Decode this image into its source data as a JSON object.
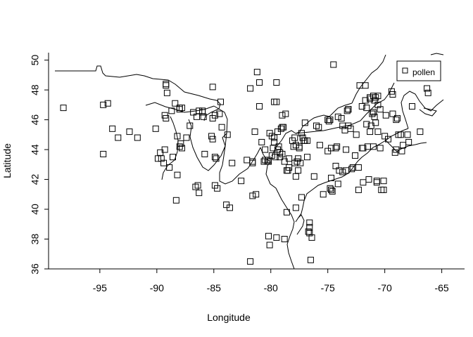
{
  "chart_data": {
    "type": "scatter",
    "xlabel": "Longitude",
    "ylabel": "Latitude",
    "xlim": [
      -99.5,
      -63
    ],
    "ylim": [
      36,
      50.5
    ],
    "x_ticks": [
      -95,
      -90,
      -85,
      -80,
      -75,
      -70,
      -65
    ],
    "x_tick_labels": [
      "-95",
      "-90",
      "-85",
      "-80",
      "-75",
      "-70",
      "-65"
    ],
    "y_ticks": [
      36,
      38,
      40,
      42,
      44,
      46,
      48,
      50
    ],
    "y_tick_labels": [
      "36",
      "38",
      "40",
      "42",
      "44",
      "46",
      "48",
      "50"
    ],
    "grid": false,
    "legend_position": "top-right",
    "series": [
      {
        "name": "pollen",
        "marker": "open-square",
        "color": "#000000",
        "points": [
          [
            -98.2,
            46.8
          ],
          [
            -94.7,
            47.0
          ],
          [
            -94.7,
            43.7
          ],
          [
            -94.3,
            47.1
          ],
          [
            -93.9,
            45.4
          ],
          [
            -93.4,
            44.8
          ],
          [
            -92.4,
            45.2
          ],
          [
            -91.7,
            44.8
          ],
          [
            -90.1,
            45.4
          ],
          [
            -89.9,
            43.4
          ],
          [
            -89.7,
            43.8
          ],
          [
            -89.6,
            43.4
          ],
          [
            -89.4,
            43.1
          ],
          [
            -89.3,
            44.0
          ],
          [
            -89.3,
            46.3
          ],
          [
            -89.2,
            46.1
          ],
          [
            -89.2,
            48.4
          ],
          [
            -89.2,
            48.3
          ],
          [
            -89.1,
            47.8
          ],
          [
            -88.9,
            42.8
          ],
          [
            -88.7,
            46.6
          ],
          [
            -88.6,
            43.5
          ],
          [
            -88.4,
            47.1
          ],
          [
            -88.3,
            40.6
          ],
          [
            -88.2,
            42.3
          ],
          [
            -88.2,
            44.9
          ],
          [
            -88.0,
            46.7
          ],
          [
            -88.0,
            46.8
          ],
          [
            -88.0,
            44.2
          ],
          [
            -87.9,
            44.4
          ],
          [
            -87.8,
            46.8
          ],
          [
            -87.8,
            44.1
          ],
          [
            -87.4,
            44.8
          ],
          [
            -87.1,
            45.6
          ],
          [
            -86.8,
            46.5
          ],
          [
            -86.6,
            41.5
          ],
          [
            -86.5,
            46.2
          ],
          [
            -86.4,
            41.6
          ],
          [
            -86.3,
            46.6
          ],
          [
            -86.3,
            41.1
          ],
          [
            -86.0,
            46.6
          ],
          [
            -86.0,
            46.5
          ],
          [
            -85.9,
            46.2
          ],
          [
            -85.8,
            43.7
          ],
          [
            -85.2,
            44.9
          ],
          [
            -85.1,
            48.2
          ],
          [
            -85.1,
            44.7
          ],
          [
            -85.1,
            46.1
          ],
          [
            -84.9,
            46.3
          ],
          [
            -84.9,
            43.5
          ],
          [
            -84.9,
            41.6
          ],
          [
            -84.8,
            43.4
          ],
          [
            -84.7,
            41.4
          ],
          [
            -84.5,
            46.4
          ],
          [
            -84.4,
            47.2
          ],
          [
            -84.3,
            45.5
          ],
          [
            -83.9,
            40.3
          ],
          [
            -83.6,
            40.1
          ],
          [
            -83.8,
            45.0
          ],
          [
            -83.4,
            43.1
          ],
          [
            -82.6,
            41.9
          ],
          [
            -82.1,
            43.3
          ],
          [
            -81.8,
            48.1
          ],
          [
            -81.8,
            36.5
          ],
          [
            -81.6,
            43.2
          ],
          [
            -81.6,
            43.1
          ],
          [
            -81.6,
            40.9
          ],
          [
            -81.4,
            45.2
          ],
          [
            -81.3,
            41.0
          ],
          [
            -81.2,
            49.2
          ],
          [
            -81.0,
            48.5
          ],
          [
            -81.0,
            46.9
          ],
          [
            -80.8,
            44.5
          ],
          [
            -80.6,
            43.2
          ],
          [
            -80.5,
            43.3
          ],
          [
            -80.5,
            44.0
          ],
          [
            -80.3,
            43.2
          ],
          [
            -80.2,
            43.2
          ],
          [
            -80.2,
            43.3
          ],
          [
            -80.2,
            38.2
          ],
          [
            -80.1,
            37.6
          ],
          [
            -80.1,
            45.1
          ],
          [
            -79.9,
            44.9
          ],
          [
            -79.9,
            43.6
          ],
          [
            -79.8,
            44.1
          ],
          [
            -79.7,
            44.5
          ],
          [
            -79.7,
            44.8
          ],
          [
            -79.7,
            47.2
          ],
          [
            -79.6,
            43.5
          ],
          [
            -79.5,
            47.2
          ],
          [
            -79.5,
            48.5
          ],
          [
            -79.5,
            38.1
          ],
          [
            -79.4,
            44.0
          ],
          [
            -79.4,
            45.2
          ],
          [
            -79.3,
            44.2
          ],
          [
            -79.2,
            43.8
          ],
          [
            -79.2,
            43.5
          ],
          [
            -79.1,
            45.4
          ],
          [
            -79.0,
            45.5
          ],
          [
            -79.0,
            43.7
          ],
          [
            -79.0,
            46.3
          ],
          [
            -78.9,
            45.5
          ],
          [
            -78.8,
            43.2
          ],
          [
            -78.8,
            38.0
          ],
          [
            -78.7,
            46.4
          ],
          [
            -78.6,
            42.6
          ],
          [
            -78.6,
            39.8
          ],
          [
            -78.5,
            42.6
          ],
          [
            -78.4,
            42.8
          ],
          [
            -78.4,
            43.4
          ],
          [
            -78.1,
            44.6
          ],
          [
            -78.0,
            44.2
          ],
          [
            -77.9,
            43.1
          ],
          [
            -77.9,
            44.8
          ],
          [
            -77.8,
            42.2
          ],
          [
            -77.8,
            44.3
          ],
          [
            -77.8,
            40.1
          ],
          [
            -77.7,
            43.2
          ],
          [
            -77.6,
            42.6
          ],
          [
            -77.6,
            43.4
          ],
          [
            -77.5,
            44.2
          ],
          [
            -77.5,
            44.1
          ],
          [
            -77.4,
            43.1
          ],
          [
            -77.3,
            45.1
          ],
          [
            -77.3,
            40.8
          ],
          [
            -77.2,
            44.8
          ],
          [
            -77.1,
            44.6
          ],
          [
            -77.0,
            45.8
          ],
          [
            -77.0,
            44.6
          ],
          [
            -76.8,
            44.6
          ],
          [
            -76.8,
            43.5
          ],
          [
            -76.7,
            38.5
          ],
          [
            -76.6,
            38.8
          ],
          [
            -76.6,
            39.1
          ],
          [
            -76.6,
            38.4
          ],
          [
            -76.5,
            36.6
          ],
          [
            -76.4,
            38.1
          ],
          [
            -76.2,
            42.2
          ],
          [
            -76.0,
            45.6
          ],
          [
            -75.8,
            45.5
          ],
          [
            -75.7,
            44.3
          ],
          [
            -75.4,
            41.0
          ],
          [
            -75.0,
            46.0
          ],
          [
            -75.0,
            43.9
          ],
          [
            -74.9,
            45.9
          ],
          [
            -74.8,
            46.0
          ],
          [
            -74.8,
            41.4
          ],
          [
            -74.7,
            41.3
          ],
          [
            -74.7,
            42.1
          ],
          [
            -74.7,
            44.1
          ],
          [
            -74.6,
            41.2
          ],
          [
            -74.5,
            49.7
          ],
          [
            -74.3,
            42.9
          ],
          [
            -74.3,
            44.1
          ],
          [
            -74.2,
            44.2
          ],
          [
            -74.1,
            46.2
          ],
          [
            -74.1,
            41.7
          ],
          [
            -74.0,
            42.6
          ],
          [
            -73.8,
            46.1
          ],
          [
            -73.7,
            45.6
          ],
          [
            -73.7,
            42.5
          ],
          [
            -73.5,
            45.3
          ],
          [
            -73.4,
            42.6
          ],
          [
            -73.4,
            44.0
          ],
          [
            -73.3,
            46.6
          ],
          [
            -73.2,
            46.7
          ],
          [
            -73.2,
            46.7
          ],
          [
            -73.2,
            45.6
          ],
          [
            -73.0,
            45.4
          ],
          [
            -72.9,
            42.7
          ],
          [
            -72.8,
            42.8
          ],
          [
            -72.6,
            43.6
          ],
          [
            -72.5,
            45.0
          ],
          [
            -72.3,
            42.8
          ],
          [
            -72.3,
            41.3
          ],
          [
            -72.2,
            48.3
          ],
          [
            -72.0,
            44.1
          ],
          [
            -72.0,
            46.9
          ],
          [
            -71.9,
            41.8
          ],
          [
            -71.9,
            44.1
          ],
          [
            -71.7,
            48.3
          ],
          [
            -71.7,
            47.3
          ],
          [
            -71.6,
            46.8
          ],
          [
            -71.6,
            45.7
          ],
          [
            -71.5,
            44.2
          ],
          [
            -71.4,
            42.0
          ],
          [
            -71.3,
            47.4
          ],
          [
            -71.3,
            47.5
          ],
          [
            -71.3,
            45.2
          ],
          [
            -71.2,
            45.6
          ],
          [
            -71.1,
            46.4
          ],
          [
            -71.0,
            47.6
          ],
          [
            -71.0,
            46.5
          ],
          [
            -71.0,
            44.2
          ],
          [
            -70.9,
            47.3
          ],
          [
            -70.9,
            46.2
          ],
          [
            -70.8,
            47.5
          ],
          [
            -70.8,
            45.8
          ],
          [
            -70.7,
            41.9
          ],
          [
            -70.7,
            41.8
          ],
          [
            -70.6,
            47.6
          ],
          [
            -70.6,
            45.2
          ],
          [
            -70.6,
            47.0
          ],
          [
            -70.4,
            46.7
          ],
          [
            -70.4,
            44.1
          ],
          [
            -70.3,
            41.3
          ],
          [
            -70.1,
            41.3
          ],
          [
            -70.1,
            41.9
          ],
          [
            -70.0,
            44.9
          ],
          [
            -69.9,
            46.3
          ],
          [
            -69.7,
            44.7
          ],
          [
            -69.4,
            47.9
          ],
          [
            -69.3,
            47.7
          ],
          [
            -69.3,
            46.4
          ],
          [
            -69.1,
            43.8
          ],
          [
            -69.0,
            44.0
          ],
          [
            -69.0,
            46.0
          ],
          [
            -68.9,
            46.1
          ],
          [
            -68.8,
            45.0
          ],
          [
            -68.6,
            45.0
          ],
          [
            -68.5,
            43.9
          ],
          [
            -68.4,
            44.3
          ],
          [
            -68.0,
            45.0
          ],
          [
            -67.9,
            44.5
          ],
          [
            -67.6,
            46.9
          ],
          [
            -66.9,
            45.2
          ],
          [
            -66.3,
            48.1
          ],
          [
            -66.2,
            47.8
          ],
          [
            -66.0,
            49.0
          ],
          [
            -65.4,
            49.1
          ]
        ]
      }
    ]
  }
}
